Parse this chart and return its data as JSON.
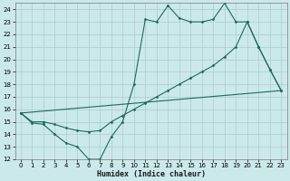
{
  "xlabel": "Humidex (Indice chaleur)",
  "background_color": "#cce9e9",
  "grid_color": "#b0d0d0",
  "line_color": "#1a6b5a",
  "xlim": [
    -0.5,
    23.5
  ],
  "ylim": [
    12,
    24.5
  ],
  "xticks": [
    0,
    1,
    2,
    3,
    4,
    5,
    6,
    7,
    8,
    9,
    10,
    11,
    12,
    13,
    14,
    15,
    16,
    17,
    18,
    19,
    20,
    21,
    22,
    23
  ],
  "yticks": [
    12,
    13,
    14,
    15,
    16,
    17,
    18,
    19,
    20,
    21,
    22,
    23,
    24
  ],
  "series1_x": [
    0,
    1,
    2,
    3,
    4,
    5,
    6,
    7,
    8,
    9,
    10,
    11,
    12,
    13,
    14,
    15,
    16,
    17,
    18,
    19,
    20,
    21,
    22,
    23
  ],
  "series1_y": [
    15.7,
    14.9,
    14.8,
    14.0,
    13.3,
    13.0,
    12.0,
    12.0,
    13.8,
    15.0,
    18.0,
    23.2,
    23.0,
    24.3,
    23.3,
    23.0,
    23.0,
    23.2,
    24.5,
    23.0,
    23.0,
    21.0,
    19.2,
    17.5
  ],
  "series2_x": [
    0,
    23
  ],
  "series2_y": [
    15.7,
    17.5
  ],
  "series3_x": [
    0,
    1,
    2,
    3,
    4,
    5,
    6,
    7,
    8,
    9,
    10,
    11,
    12,
    13,
    14,
    15,
    16,
    17,
    18,
    19,
    20,
    21,
    22,
    23
  ],
  "series3_y": [
    15.7,
    15.0,
    15.0,
    14.8,
    14.5,
    14.3,
    14.2,
    14.3,
    15.0,
    15.5,
    16.0,
    16.5,
    17.0,
    17.5,
    18.0,
    18.5,
    19.0,
    19.5,
    20.2,
    21.0,
    23.0,
    21.0,
    19.2,
    17.5
  ]
}
